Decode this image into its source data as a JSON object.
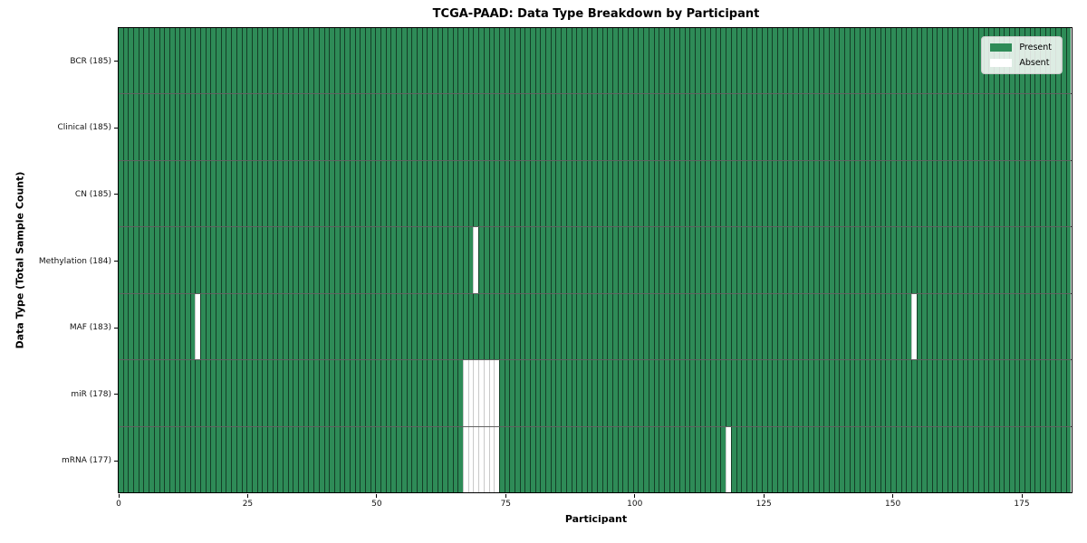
{
  "chart_data": {
    "type": "heatmap",
    "title": "TCGA-PAAD: Data Type Breakdown by Participant",
    "xlabel": "Participant",
    "ylabel": "Data Type (Total Sample Count)",
    "x_ticks": [
      0,
      25,
      50,
      75,
      100,
      125,
      150,
      175
    ],
    "x_range": [
      0,
      185
    ],
    "n_participants": 185,
    "grid": false,
    "legend_position": "upper right",
    "legend": [
      {
        "label": "Present",
        "color": "#2e8b57"
      },
      {
        "label": "Absent",
        "color": "#ffffff"
      }
    ],
    "rows": [
      {
        "label": "BCR (185)",
        "total": 185,
        "absent_participants": []
      },
      {
        "label": "Clinical (185)",
        "total": 185,
        "absent_participants": []
      },
      {
        "label": "CN (185)",
        "total": 185,
        "absent_participants": []
      },
      {
        "label": "Methylation (184)",
        "total": 184,
        "absent_participants": [
          69
        ]
      },
      {
        "label": "MAF (183)",
        "total": 183,
        "absent_participants": [
          15,
          154
        ]
      },
      {
        "label": "miR (178)",
        "total": 178,
        "absent_participants": [
          67,
          68,
          69,
          70,
          71,
          72,
          73
        ]
      },
      {
        "label": "mRNA (177)",
        "total": 177,
        "absent_participants": [
          67,
          68,
          69,
          70,
          71,
          72,
          73,
          118
        ]
      }
    ],
    "colors": {
      "present": "#2e8b57",
      "absent": "#ffffff"
    }
  }
}
